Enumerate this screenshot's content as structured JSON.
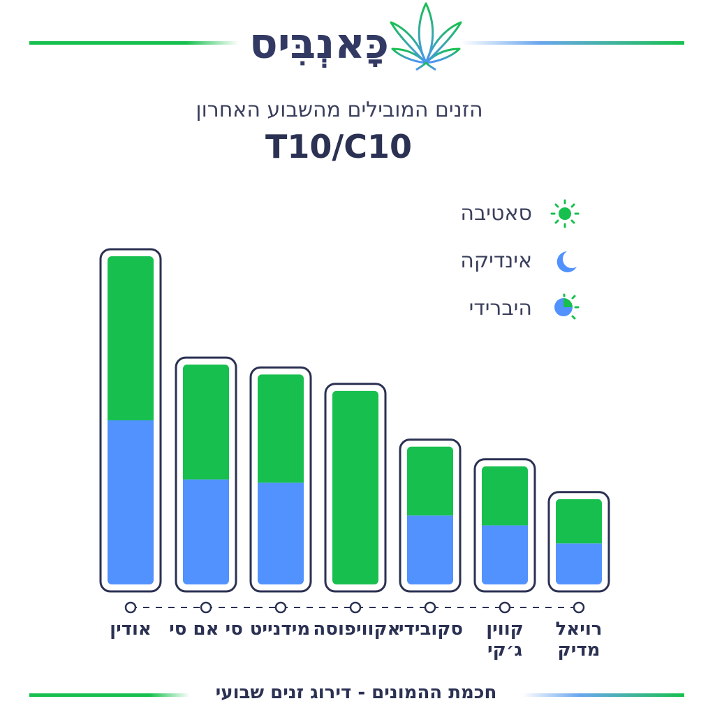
{
  "brand": {
    "name": "כָּאנְבִּיס"
  },
  "header": {
    "subtitle": "הזנים המובילים מהשבוע האחרון",
    "code": "T10/C10"
  },
  "legend": [
    {
      "label": "סאטיבה",
      "icon": "sun-icon",
      "color": "#17c04e"
    },
    {
      "label": "אינדיקה",
      "icon": "moon-icon",
      "color": "#5192ff"
    },
    {
      "label": "היברידי",
      "icon": "hybrid-icon",
      "color": "#17c04e"
    }
  ],
  "footer": {
    "text": "חכמת ההמונים - דירוג זנים שבועי"
  },
  "chart_data": {
    "type": "bar",
    "stacked": true,
    "categories": [
      "אודין",
      "סי אם סי",
      "מידנייט",
      "אקוויפוסה",
      "סקובידי",
      "קווין ג׳קי",
      "רויאל מדיק"
    ],
    "series": [
      {
        "name": "אינדיקה",
        "color": "#5192ff",
        "values": [
          50,
          32,
          31,
          0,
          21,
          18,
          12.5
        ]
      },
      {
        "name": "סאטיבה",
        "color": "#17c04e",
        "values": [
          50,
          35,
          33,
          59,
          21,
          18,
          13.5
        ]
      }
    ],
    "ylim": [
      0,
      100
    ],
    "xlabel": "",
    "ylabel": ""
  }
}
